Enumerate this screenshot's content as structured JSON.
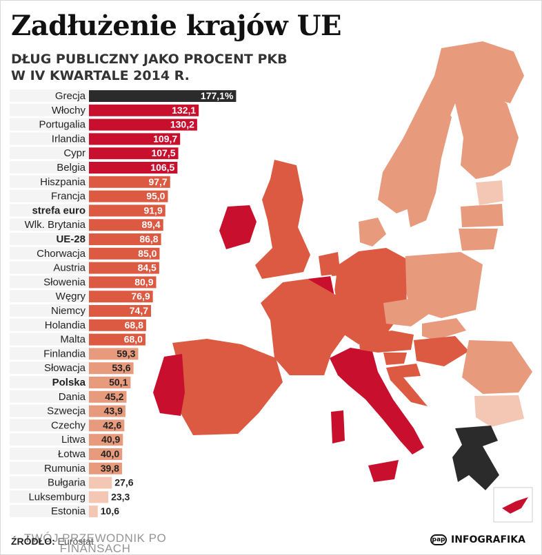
{
  "title": "Zadłużenie krajów UE",
  "subtitle_line1": "DŁUG PUBLICZNY JAKO PROCENT PKB",
  "subtitle_line2": "W IV KWARTALE 2014 R.",
  "source_label": "ŹRÓDŁO:",
  "source_value": "Eurostat",
  "pap_logo": "pap",
  "pap_label": "INFOGRAFIKA",
  "watermark_text": "TWÓJ PRZEWODNIK PO FINANSACH",
  "colors": {
    "greece": "#2b2b2b",
    "high": "#c8102e",
    "medium": "#dd5a42",
    "low": "#e89a7c",
    "lowest": "#f3c7b3",
    "highlight_row": "#ececec"
  },
  "chart_data": {
    "type": "bar",
    "orientation": "horizontal",
    "unit": "%",
    "categories": [
      "Grecja",
      "Włochy",
      "Portugalia",
      "Irlandia",
      "Cypr",
      "Belgia",
      "Hiszpania",
      "Francja",
      "strefa euro",
      "Wlk. Brytania",
      "UE-28",
      "Chorwacja",
      "Austria",
      "Słowenia",
      "Węgry",
      "Niemcy",
      "Holandia",
      "Malta",
      "Finlandia",
      "Słowacja",
      "Polska",
      "Dania",
      "Szwecja",
      "Czechy",
      "Litwa",
      "Łotwa",
      "Rumunia",
      "Bułgaria",
      "Luksemburg",
      "Estonia"
    ],
    "labels": [
      "177,1%",
      "132,1",
      "130,2",
      "109,7",
      "107,5",
      "106,5",
      "97,7",
      "95,0",
      "91,9",
      "89,4",
      "86,8",
      "85,0",
      "84,5",
      "80,9",
      "76,9",
      "74,7",
      "68,8",
      "68,0",
      "59,3",
      "53,6",
      "50,1",
      "45,2",
      "43,9",
      "42,6",
      "40,9",
      "40,0",
      "39,8",
      "27,6",
      "23,3",
      "10,6"
    ],
    "values": [
      177.1,
      132.1,
      130.2,
      109.7,
      107.5,
      106.5,
      97.7,
      95.0,
      91.9,
      89.4,
      86.8,
      85.0,
      84.5,
      80.9,
      76.9,
      74.7,
      68.8,
      68.0,
      59.3,
      53.6,
      50.1,
      45.2,
      43.9,
      42.6,
      40.9,
      40.0,
      39.8,
      27.6,
      23.3,
      10.6
    ],
    "bold_categories": [
      "strefa euro",
      "UE-28",
      "Polska"
    ]
  }
}
